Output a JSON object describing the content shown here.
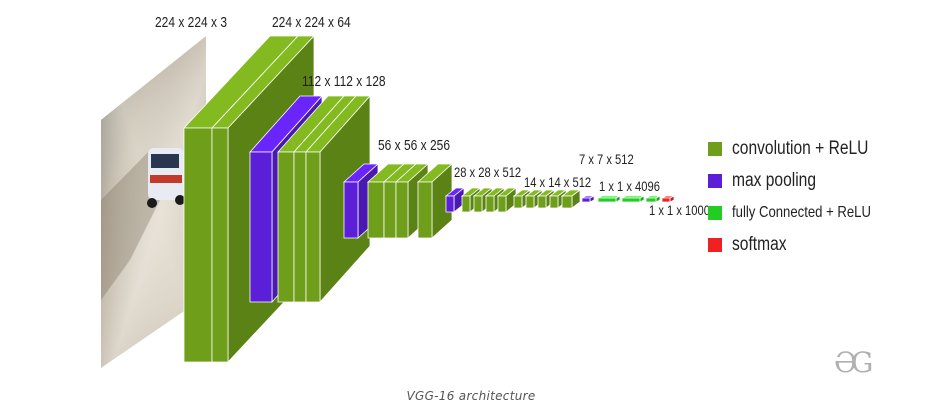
{
  "labels": {
    "input": "224 x 224 x 3",
    "conv1": "224 x 224 x 64",
    "conv2": "112 x 112 x 128",
    "conv3": "56 x 56 x 256",
    "conv4": "28 x 28 x 512",
    "conv5": "14 x 14 x 512",
    "pool5": "7 x 7 x 512",
    "fc": "1 x 1 x 4096",
    "softmax": "1 x 1 x 1000"
  },
  "legend": [
    {
      "label": "convolution + ReLU",
      "color": "#6e9e1a",
      "icon": "green-cube-icon"
    },
    {
      "label": "max pooling",
      "color": "#5a1fd6",
      "icon": "purple-cube-icon"
    },
    {
      "label": "fully Connected + ReLU",
      "color": "#22cc22",
      "icon": "bright-green-cube-icon"
    },
    {
      "label": "softmax",
      "color": "#ee2222",
      "icon": "red-cube-icon"
    }
  ],
  "colors": {
    "conv": "#6e9e1a",
    "pool": "#5a1fd6",
    "fc": "#22cc22",
    "softmax": "#ee2222"
  },
  "caption": "VGG-16 architecture",
  "watermark": "GG"
}
